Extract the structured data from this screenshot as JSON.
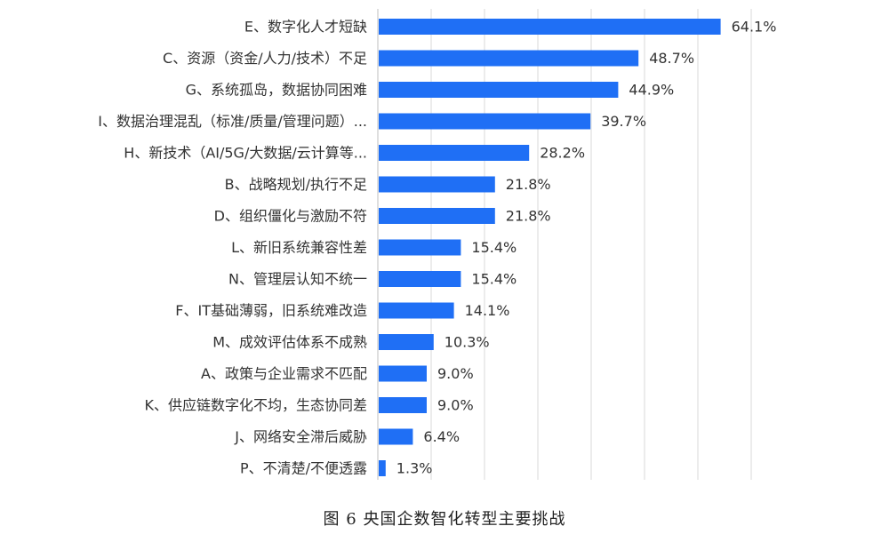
{
  "figure": {
    "caption": "图 6 央国企数智化转型主要挑战"
  },
  "chart_data": {
    "type": "bar",
    "orientation": "horizontal",
    "categories": [
      "E、数字化人才短缺",
      "C、资源（资金/人力/技术）不足",
      "G、系统孤岛，数据协同困难",
      "I、数据治理混乱（标准/质量/管理问题）...",
      "H、新技术（AI/5G/大数据/云计算等...",
      "B、战略规划/执行不足",
      "D、组织僵化与激励不符",
      "L、新旧系统兼容性差",
      "N、管理层认知不统一",
      "F、IT基础薄弱，旧系统难改造",
      "M、成效评估体系不成熟",
      "A、政策与企业需求不匹配",
      "K、供应链数字化不均，生态协同差",
      "J、网络安全滞后威胁",
      "P、不清楚/不便透露"
    ],
    "values": [
      64.1,
      48.7,
      44.9,
      39.7,
      28.2,
      21.8,
      21.8,
      15.4,
      15.4,
      14.1,
      10.3,
      9.0,
      9.0,
      6.4,
      1.3
    ],
    "value_labels": [
      "64.1%",
      "48.7%",
      "44.9%",
      "39.7%",
      "28.2%",
      "21.8%",
      "21.8%",
      "15.4%",
      "15.4%",
      "14.1%",
      "10.3%",
      "9.0%",
      "9.0%",
      "6.4%",
      "1.3%"
    ],
    "unit": "%",
    "xlim": [
      0,
      70
    ],
    "gridlines": [
      10,
      20,
      30,
      40,
      50,
      60,
      70
    ],
    "grid": true,
    "legend": "none",
    "bar_color": "#1f6ff5"
  }
}
